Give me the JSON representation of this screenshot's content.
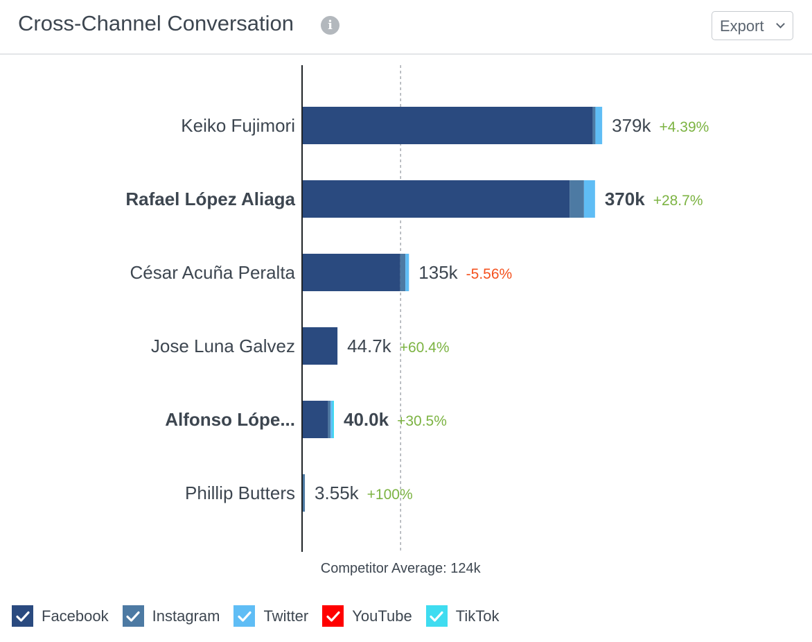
{
  "header": {
    "title": "Cross-Channel Conversation",
    "info_icon": "info-icon",
    "export_label": "Export"
  },
  "chart_data": {
    "type": "bar",
    "orientation": "horizontal",
    "stacked": true,
    "categories": [
      "Keiko Fujimori",
      "Rafael López Aliaga",
      "César Acuña Peralta",
      "Jose Luna Galvez",
      "Alfonso Lópe...",
      "Phillip Butters"
    ],
    "highlighted_categories": [
      "Rafael López Aliaga",
      "Alfonso Lópe..."
    ],
    "series": [
      {
        "name": "Facebook",
        "color": "#2a4a7f",
        "values": [
          367000,
          338000,
          124000,
          44700,
          33000,
          0
        ]
      },
      {
        "name": "Instagram",
        "color": "#4d7aa3",
        "values": [
          3500,
          18000,
          6500,
          0,
          3000,
          3550
        ]
      },
      {
        "name": "Twitter",
        "color": "#5fbdf5",
        "values": [
          8500,
          14000,
          4500,
          0,
          2500,
          0
        ]
      },
      {
        "name": "YouTube",
        "color": "#ff0000",
        "values": [
          0,
          0,
          0,
          0,
          0,
          0
        ]
      },
      {
        "name": "TikTok",
        "color": "#3fdcf0",
        "values": [
          0,
          0,
          0,
          0,
          1500,
          0
        ]
      }
    ],
    "totals": [
      "379k",
      "370k",
      "135k",
      "44.7k",
      "40.0k",
      "3.55k"
    ],
    "changes": [
      "+4.39%",
      "+28.7%",
      "-5.56%",
      "+60.4%",
      "+30.5%",
      "+100%"
    ],
    "positive_color": "#7cb342",
    "negative_color": "#f4511e",
    "reference_line": {
      "label": "Competitor Average: 124k",
      "value": 124000
    },
    "xlim": [
      0,
      455000
    ],
    "grid": false,
    "legend_position": "bottom-left"
  },
  "legend": [
    {
      "label": "Facebook",
      "color": "#2a4a7f",
      "checked": true
    },
    {
      "label": "Instagram",
      "color": "#4d7aa3",
      "checked": true
    },
    {
      "label": "Twitter",
      "color": "#5fbdf5",
      "checked": true
    },
    {
      "label": "YouTube",
      "color": "#ff0000",
      "checked": true
    },
    {
      "label": "TikTok",
      "color": "#3fdcf0",
      "checked": true
    }
  ]
}
